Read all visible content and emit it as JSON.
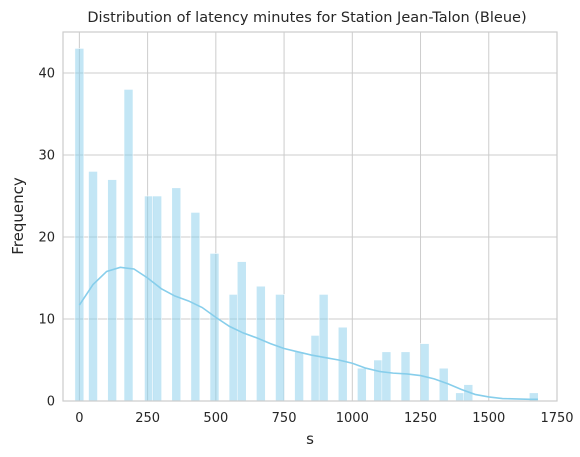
{
  "chart_data": {
    "type": "bar",
    "title": "Distribution of latency minutes for Station Jean-Talon (Bleue)",
    "xlabel": "s",
    "ylabel": "Frequency",
    "xlim": [
      -60,
      1750
    ],
    "ylim": [
      0,
      45
    ],
    "xticks": [
      0,
      250,
      500,
      750,
      1000,
      1250,
      1500,
      1750
    ],
    "yticks": [
      0,
      10,
      20,
      30,
      40
    ],
    "grid": true,
    "bar_color": "#87ceeb",
    "kde_color": "#87ceeb",
    "bar_width": 33,
    "bars": [
      {
        "x": 0,
        "value": 43
      },
      {
        "x": 50,
        "value": 28
      },
      {
        "x": 120,
        "value": 27
      },
      {
        "x": 180,
        "value": 38
      },
      {
        "x": 255,
        "value": 25
      },
      {
        "x": 285,
        "value": 25
      },
      {
        "x": 355,
        "value": 26
      },
      {
        "x": 425,
        "value": 23
      },
      {
        "x": 495,
        "value": 18
      },
      {
        "x": 565,
        "value": 13
      },
      {
        "x": 595,
        "value": 17
      },
      {
        "x": 665,
        "value": 14
      },
      {
        "x": 735,
        "value": 13
      },
      {
        "x": 805,
        "value": 6
      },
      {
        "x": 865,
        "value": 8
      },
      {
        "x": 895,
        "value": 13
      },
      {
        "x": 965,
        "value": 9
      },
      {
        "x": 1035,
        "value": 4
      },
      {
        "x": 1095,
        "value": 5
      },
      {
        "x": 1125,
        "value": 6
      },
      {
        "x": 1195,
        "value": 6
      },
      {
        "x": 1265,
        "value": 7
      },
      {
        "x": 1335,
        "value": 4
      },
      {
        "x": 1395,
        "value": 1
      },
      {
        "x": 1425,
        "value": 2
      },
      {
        "x": 1665,
        "value": 1
      }
    ],
    "kde": [
      [
        0,
        11.7
      ],
      [
        50,
        14.2
      ],
      [
        100,
        15.8
      ],
      [
        150,
        16.3
      ],
      [
        200,
        16.1
      ],
      [
        250,
        15.0
      ],
      [
        300,
        13.7
      ],
      [
        350,
        12.8
      ],
      [
        400,
        12.2
      ],
      [
        450,
        11.4
      ],
      [
        500,
        10.2
      ],
      [
        550,
        9.1
      ],
      [
        600,
        8.3
      ],
      [
        650,
        7.7
      ],
      [
        700,
        7.0
      ],
      [
        750,
        6.4
      ],
      [
        800,
        6.0
      ],
      [
        850,
        5.6
      ],
      [
        900,
        5.3
      ],
      [
        950,
        5.0
      ],
      [
        1000,
        4.6
      ],
      [
        1050,
        4.0
      ],
      [
        1100,
        3.6
      ],
      [
        1150,
        3.4
      ],
      [
        1200,
        3.3
      ],
      [
        1250,
        3.1
      ],
      [
        1300,
        2.7
      ],
      [
        1350,
        2.1
      ],
      [
        1400,
        1.4
      ],
      [
        1450,
        0.8
      ],
      [
        1500,
        0.5
      ],
      [
        1550,
        0.3
      ],
      [
        1600,
        0.25
      ],
      [
        1650,
        0.2
      ],
      [
        1680,
        0.2
      ]
    ]
  }
}
